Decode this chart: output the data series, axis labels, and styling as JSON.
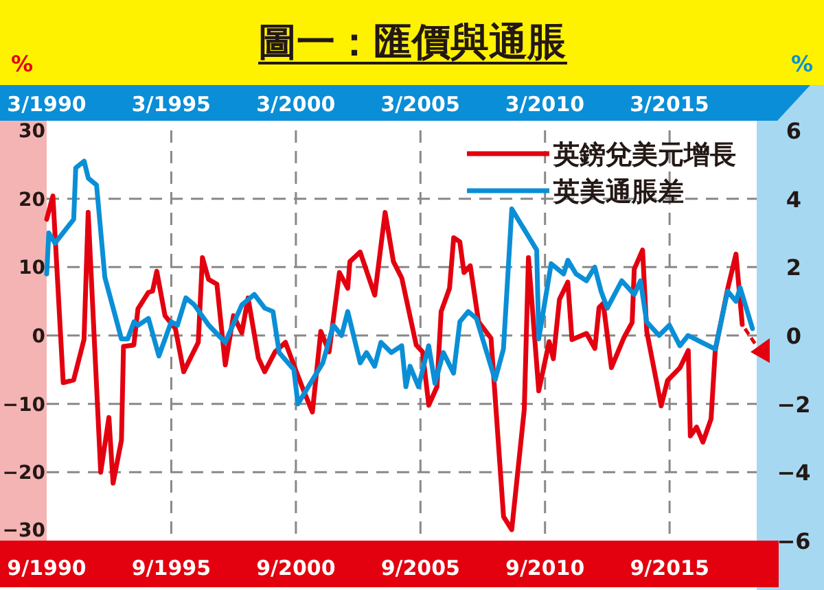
{
  "chart_data": {
    "type": "line",
    "title": "圖一：匯價與通脹",
    "ylabel": "%",
    "y2label": "%",
    "xlim": [
      "1990-09",
      "2019-03"
    ],
    "xticks": [
      {
        "value": "1990-09",
        "label": "9/1990"
      },
      {
        "value": "1995-09",
        "label": "9/1995"
      },
      {
        "value": "2000-09",
        "label": "9/2000"
      },
      {
        "value": "2005-09",
        "label": "9/2005"
      },
      {
        "value": "2010-09",
        "label": "9/2010"
      },
      {
        "value": "2015-09",
        "label": "9/2015"
      }
    ],
    "x2lim": [
      "1990-03",
      "2018-09"
    ],
    "x2ticks": [
      {
        "value": "1990-03",
        "label": "3/1990"
      },
      {
        "value": "1995-03",
        "label": "3/1995"
      },
      {
        "value": "2000-03",
        "label": "3/2000"
      },
      {
        "value": "2005-03",
        "label": "3/2005"
      },
      {
        "value": "2010-03",
        "label": "3/2010"
      },
      {
        "value": "2015-03",
        "label": "3/2015"
      }
    ],
    "ylim": [
      -6,
      6
    ],
    "yticks": [
      -6,
      -4,
      -2,
      0,
      2,
      4,
      6
    ],
    "y2lim": [
      -30,
      30
    ],
    "y2ticks": [
      -30,
      -20,
      -10,
      0,
      10,
      20,
      30
    ],
    "grid": true,
    "legend": "top right",
    "series": [
      {
        "name": "英鎊兌美元增長",
        "color": "#e3000f",
        "axis": "y2",
        "x": [
          "1990-09",
          "1990-12",
          "1991-05",
          "1991-10",
          "1992-03",
          "1992-05",
          "1992-11",
          "1993-03",
          "1993-05",
          "1993-09",
          "1993-10",
          "1994-03",
          "1994-05",
          "1994-10",
          "1994-12",
          "1995-02",
          "1995-06",
          "1995-11",
          "1996-03",
          "1996-10",
          "1996-12",
          "1997-03",
          "1997-07",
          "1997-11",
          "1998-03",
          "1998-07",
          "1998-10",
          "1999-03",
          "1999-06",
          "1999-11",
          "2000-04",
          "2000-08",
          "2000-12",
          "2001-05",
          "2001-09",
          "2002-01",
          "2002-06",
          "2002-10",
          "2002-11",
          "2003-04",
          "2003-11",
          "2004-04",
          "2004-08",
          "2004-12",
          "2005-07",
          "2005-10",
          "2006-01",
          "2006-05",
          "2006-07",
          "2006-11",
          "2007-01",
          "2007-04",
          "2007-06",
          "2007-09",
          "2008-01",
          "2008-07",
          "2009-01",
          "2009-05",
          "2009-11",
          "2010-01",
          "2010-06",
          "2010-11",
          "2011-01",
          "2011-04",
          "2011-08",
          "2011-10",
          "2012-05",
          "2012-09",
          "2012-11",
          "2013-01",
          "2013-05",
          "2013-11",
          "2014-03",
          "2014-04",
          "2014-08",
          "2014-10",
          "2015-05",
          "2015-08",
          "2016-02",
          "2016-06",
          "2016-07",
          "2016-10",
          "2017-01",
          "2017-05",
          "2017-07",
          "2018-01",
          "2018-05",
          "2018-08"
        ],
        "values": [
          17,
          20.4,
          -6.9,
          -6.5,
          -0.6,
          18,
          -20,
          -12,
          -21.6,
          -15.3,
          -1.6,
          -1.4,
          3.9,
          6.3,
          6.5,
          9.4,
          2.9,
          1,
          -5.3,
          -1,
          11.4,
          8.2,
          7.5,
          -4.3,
          2.9,
          0.4,
          5.5,
          -3.3,
          -5.3,
          -2.4,
          -1,
          -4.3,
          -7.5,
          -11.2,
          0.6,
          -2.4,
          9.2,
          6.9,
          10.8,
          12.2,
          5.9,
          18,
          10.8,
          8.4,
          -1.4,
          -2.4,
          -10.2,
          -7.5,
          3.5,
          6.9,
          14.3,
          13.7,
          9.2,
          10.2,
          2,
          -0.4,
          -26.5,
          -28.4,
          -10.8,
          11.4,
          -8.1,
          -0.9,
          -3.4,
          5.3,
          7.8,
          -0.6,
          0.3,
          -1.9,
          4.1,
          4.7,
          -4.7,
          -0.3,
          1.9,
          9.7,
          12.5,
          0.6,
          -10.3,
          -6.6,
          -4.7,
          -2.2,
          -14.7,
          -13.4,
          -15.6,
          -12.2,
          -2.2,
          6.9,
          11.9,
          1.6
        ]
      },
      {
        "name": "英美通脹差",
        "color": "#0a8fd6",
        "axis": "x2",
        "x": [
          "1990-03",
          "1990-04",
          "1990-07",
          "1991-04",
          "1991-05",
          "1991-09",
          "1991-11",
          "1992-03",
          "1992-07",
          "1993-03",
          "1993-06",
          "1993-09",
          "1993-11",
          "1994-04",
          "1994-09",
          "1995-03",
          "1995-06",
          "1995-10",
          "1996-02",
          "1996-09",
          "1997-05",
          "1998-01",
          "1998-07",
          "1998-12",
          "1999-04",
          "1999-07",
          "2000-02",
          "2000-04",
          "2001-04",
          "2001-09",
          "2002-01",
          "2002-04",
          "2002-10",
          "2003-01",
          "2003-05",
          "2003-08",
          "2004-01",
          "2004-06",
          "2004-08",
          "2004-10",
          "2005-02",
          "2005-07",
          "2005-10",
          "2006-02",
          "2006-07",
          "2006-10",
          "2007-02",
          "2007-06",
          "2008-03",
          "2008-07",
          "2008-11",
          "2009-11",
          "2009-12",
          "2010-06",
          "2010-12",
          "2011-02",
          "2011-06",
          "2011-11",
          "2012-03",
          "2012-06",
          "2012-09",
          "2013-04",
          "2013-10",
          "2014-01",
          "2014-04",
          "2014-10",
          "2015-03",
          "2015-08",
          "2015-12",
          "2017-01",
          "2017-07",
          "2017-11",
          "2018-01",
          "2018-07"
        ],
        "values": [
          1.8,
          3,
          2.7,
          3.4,
          4.9,
          5.1,
          4.6,
          4.4,
          1.7,
          -0.1,
          -0.1,
          0.4,
          0.3,
          0.5,
          -0.6,
          0.4,
          0.3,
          1.1,
          0.9,
          0.3,
          -0.2,
          0.9,
          1.2,
          0.8,
          0.7,
          -0.5,
          -1,
          -2,
          -0.8,
          0.3,
          0,
          0.7,
          -0.8,
          -0.5,
          -0.9,
          -0.2,
          -0.5,
          -0.3,
          -1.5,
          -0.9,
          -1.5,
          -0.3,
          -1.4,
          -0.5,
          -1.1,
          0.4,
          0.7,
          0.5,
          -1.3,
          -0.4,
          3.7,
          2.5,
          -0.1,
          2.1,
          1.8,
          2.2,
          1.8,
          1.6,
          2,
          1.3,
          0.8,
          1.6,
          1.2,
          1.6,
          0.4,
          0,
          0.3,
          -0.3,
          0,
          -0.4,
          1.3,
          1,
          1.4,
          0.2
        ]
      }
    ]
  }
}
